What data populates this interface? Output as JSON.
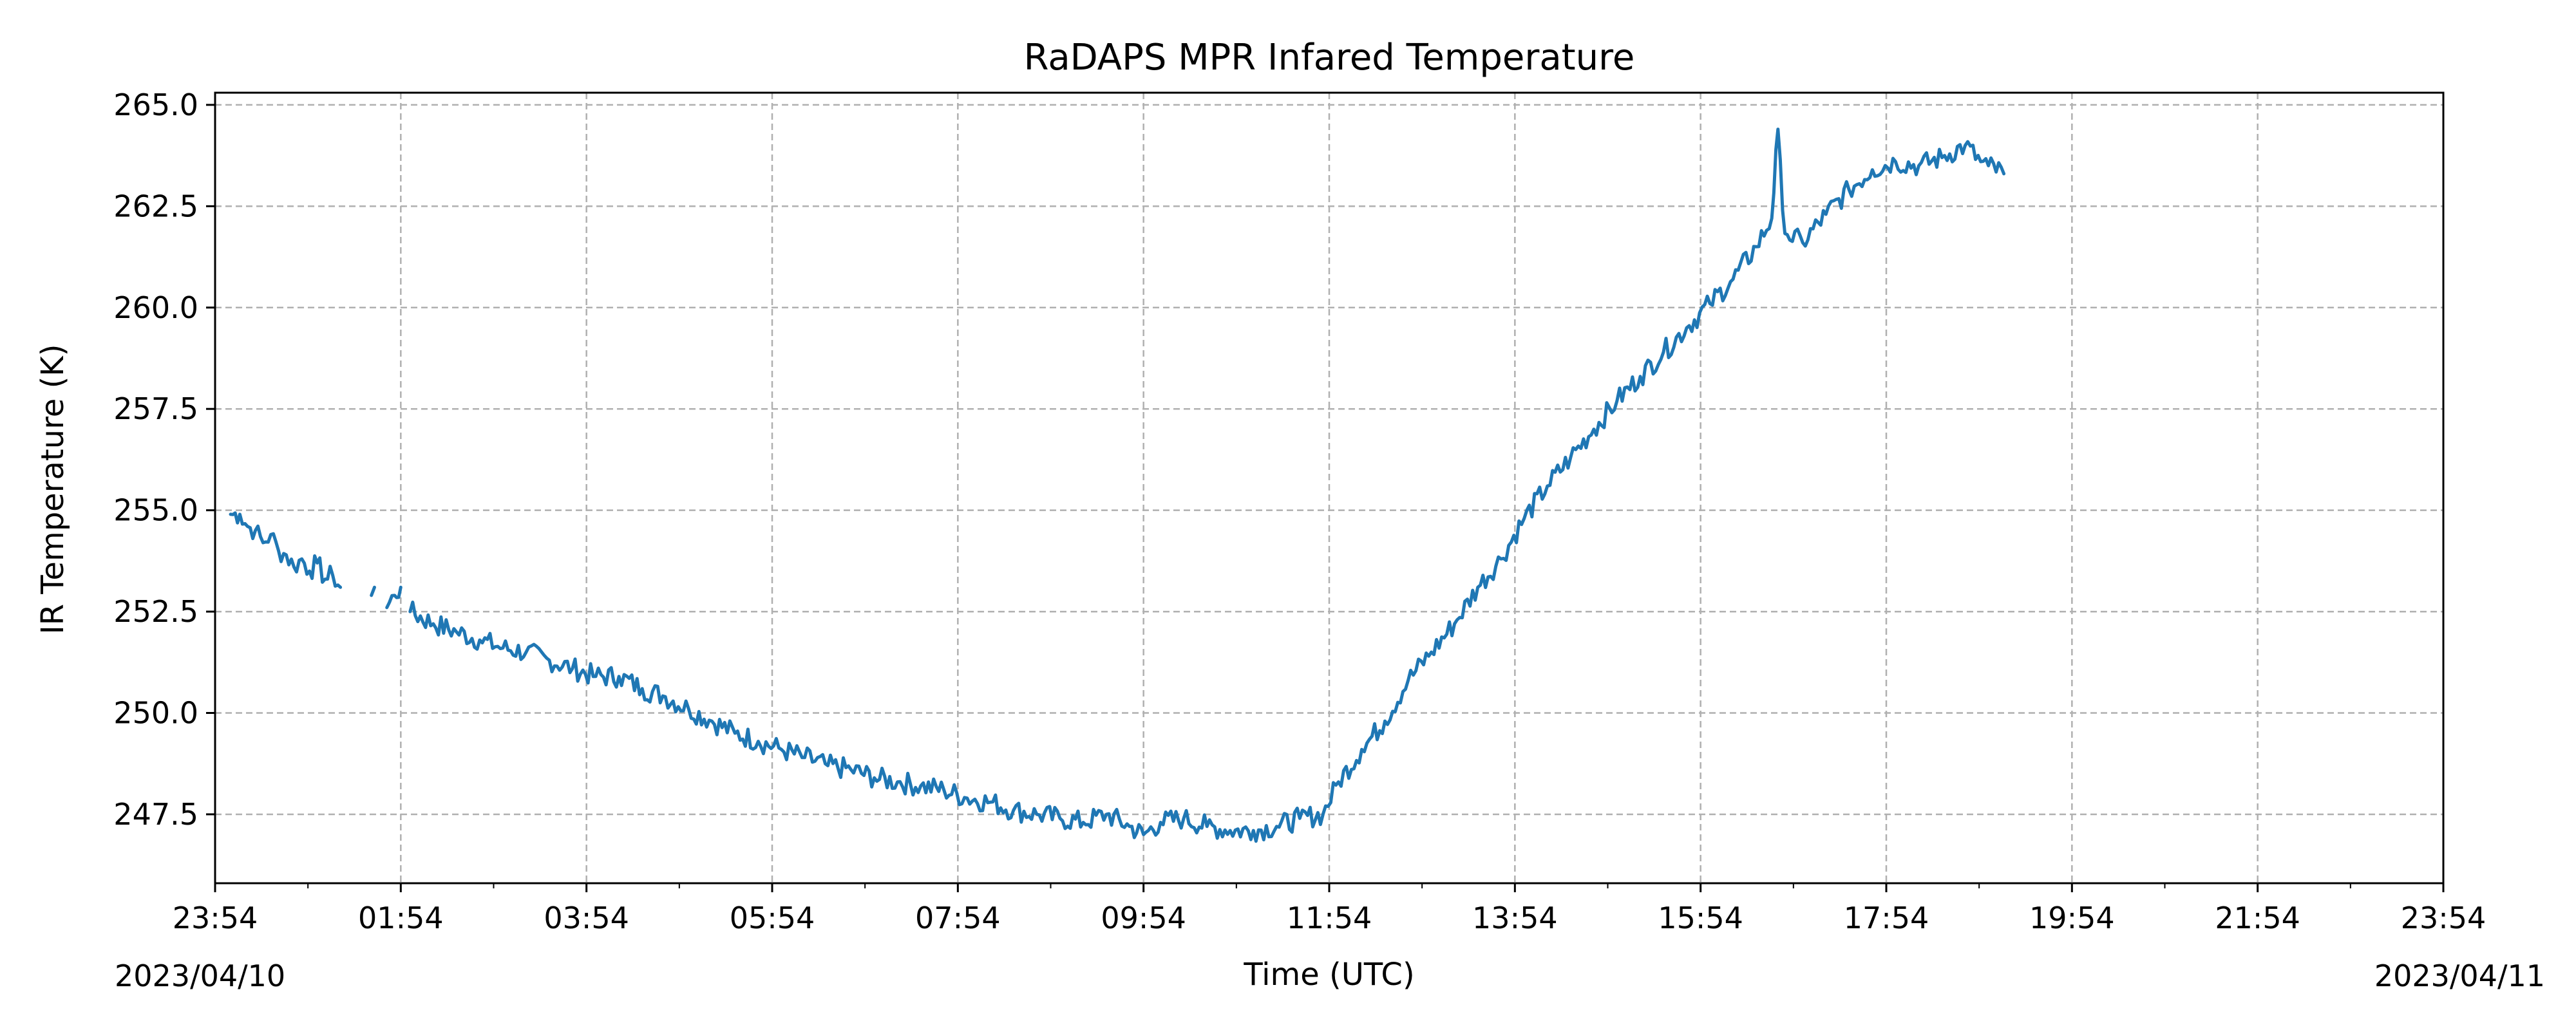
{
  "chart_data": {
    "type": "line",
    "title": "RaDAPS MPR Infared Temperature",
    "xlabel": "Time (UTC)",
    "ylabel": "IR Temperature (K)",
    "x_unit": "time (UTC)",
    "xlim": [
      "2023-04-10 23:54",
      "2023-04-11 23:54"
    ],
    "ylim": [
      245.8,
      265.3
    ],
    "grid": true,
    "x_ticks": [
      "23:54",
      "01:54",
      "03:54",
      "05:54",
      "07:54",
      "09:54",
      "11:54",
      "13:54",
      "15:54",
      "17:54",
      "19:54",
      "21:54",
      "23:54"
    ],
    "x_date_labels": {
      "start": "2023/04/10",
      "end": "2023/04/11"
    },
    "y_ticks": [
      "247.5",
      "250.0",
      "252.5",
      "255.0",
      "257.5",
      "260.0",
      "262.5",
      "265.0"
    ],
    "series_color": "#1f77b4",
    "series": [
      {
        "name": "",
        "segments": [
          {
            "x": [
              "00:04",
              "00:10",
              "00:15",
              "00:20",
              "00:25",
              "00:30",
              "00:35",
              "00:40",
              "00:45",
              "00:50",
              "00:55",
              "01:00",
              "01:05",
              "01:10",
              "01:15"
            ],
            "y": [
              254.9,
              254.9,
              254.6,
              254.5,
              254.2,
              254.4,
              254.0,
              253.9,
              253.6,
              253.8,
              253.5,
              253.7,
              253.3,
              253.4,
              253.1
            ]
          },
          {
            "x": [
              "01:35",
              "01:37"
            ],
            "y": [
              252.9,
              253.1
            ]
          },
          {
            "x": [
              "01:45",
              "01:50",
              "01:54"
            ],
            "y": [
              252.6,
              252.9,
              253.1
            ]
          },
          {
            "x": [
              "02:00",
              "02:15",
              "02:30",
              "02:45",
              "03:00",
              "03:15",
              "03:30",
              "03:45",
              "04:00",
              "04:15",
              "04:30",
              "04:45",
              "05:00",
              "05:15",
              "05:30",
              "05:45",
              "06:00",
              "06:15",
              "06:30",
              "06:45",
              "07:00",
              "07:15",
              "07:30",
              "07:45",
              "08:00",
              "08:15",
              "08:30",
              "08:45",
              "09:00",
              "09:15",
              "09:30",
              "09:45",
              "09:54",
              "10:05",
              "10:20",
              "10:35",
              "10:50",
              "11:05",
              "11:20",
              "11:35",
              "11:50",
              "12:00",
              "12:15",
              "12:30",
              "12:45",
              "13:00",
              "13:15",
              "13:30",
              "13:45",
              "14:00",
              "14:15",
              "14:30",
              "14:45",
              "15:00",
              "15:15",
              "15:30",
              "15:45",
              "16:00",
              "16:15",
              "16:30",
              "16:40",
              "16:44",
              "16:47",
              "16:50",
              "17:00",
              "17:15",
              "17:30",
              "17:45",
              "18:00",
              "18:15",
              "18:30",
              "18:45",
              "18:55",
              "19:00",
              "19:10"
            ],
            "y": [
              252.5,
              252.2,
              252.0,
              251.8,
              251.6,
              251.5,
              251.3,
              251.1,
              250.9,
              250.9,
              250.6,
              250.4,
              250.1,
              249.8,
              249.5,
              249.3,
              249.1,
              248.9,
              248.7,
              248.6,
              248.4,
              248.3,
              248.2,
              248.1,
              247.9,
              247.8,
              247.6,
              247.5,
              247.4,
              247.3,
              247.5,
              247.2,
              247.0,
              247.3,
              247.4,
              247.2,
              247.1,
              247.1,
              247.2,
              247.4,
              247.5,
              248.3,
              249.1,
              249.8,
              250.8,
              251.5,
              252.2,
              253.1,
              253.8,
              254.8,
              255.6,
              256.3,
              257.0,
              257.7,
              258.3,
              258.9,
              259.5,
              260.1,
              260.7,
              261.5,
              262.2,
              264.4,
              262.4,
              261.8,
              261.6,
              262.3,
              262.9,
              263.4,
              263.6,
              263.5,
              263.7,
              264.0,
              263.6,
              263.5,
              263.3
            ]
          }
        ]
      }
    ]
  }
}
